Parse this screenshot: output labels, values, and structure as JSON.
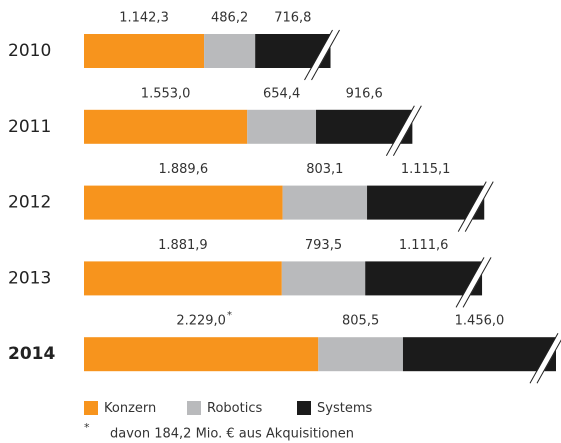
{
  "chart_data": {
    "type": "stacked-bar-horizontal",
    "categories": [
      "2010",
      "2011",
      "2012",
      "2013",
      "2014"
    ],
    "series": [
      {
        "name": "Konzern",
        "color": "#f7941d",
        "values": [
          1142.3,
          1553.0,
          1889.6,
          1881.9,
          2229.0
        ],
        "value_labels": [
          "1.142,3",
          "1.553,0",
          "1.889,6",
          "1.881,9",
          "2.229,0"
        ]
      },
      {
        "name": "Robotics",
        "color": "#b9babc",
        "values": [
          486.2,
          654.4,
          803.1,
          793.5,
          805.5
        ],
        "value_labels": [
          "486,2",
          "654,4",
          "803,1",
          "793,5",
          "805,5"
        ]
      },
      {
        "name": "Systems",
        "color": "#1b1b1b",
        "values": [
          716.8,
          916.6,
          1115.1,
          1111.6,
          1456.0
        ],
        "value_labels": [
          "716,8",
          "916,6",
          "1.115,1",
          "1.111,6",
          "1.456,0"
        ]
      }
    ],
    "footnote": {
      "marker": "*",
      "text": "davon 184,2 Mio. € aus Akquisitionen"
    }
  }
}
